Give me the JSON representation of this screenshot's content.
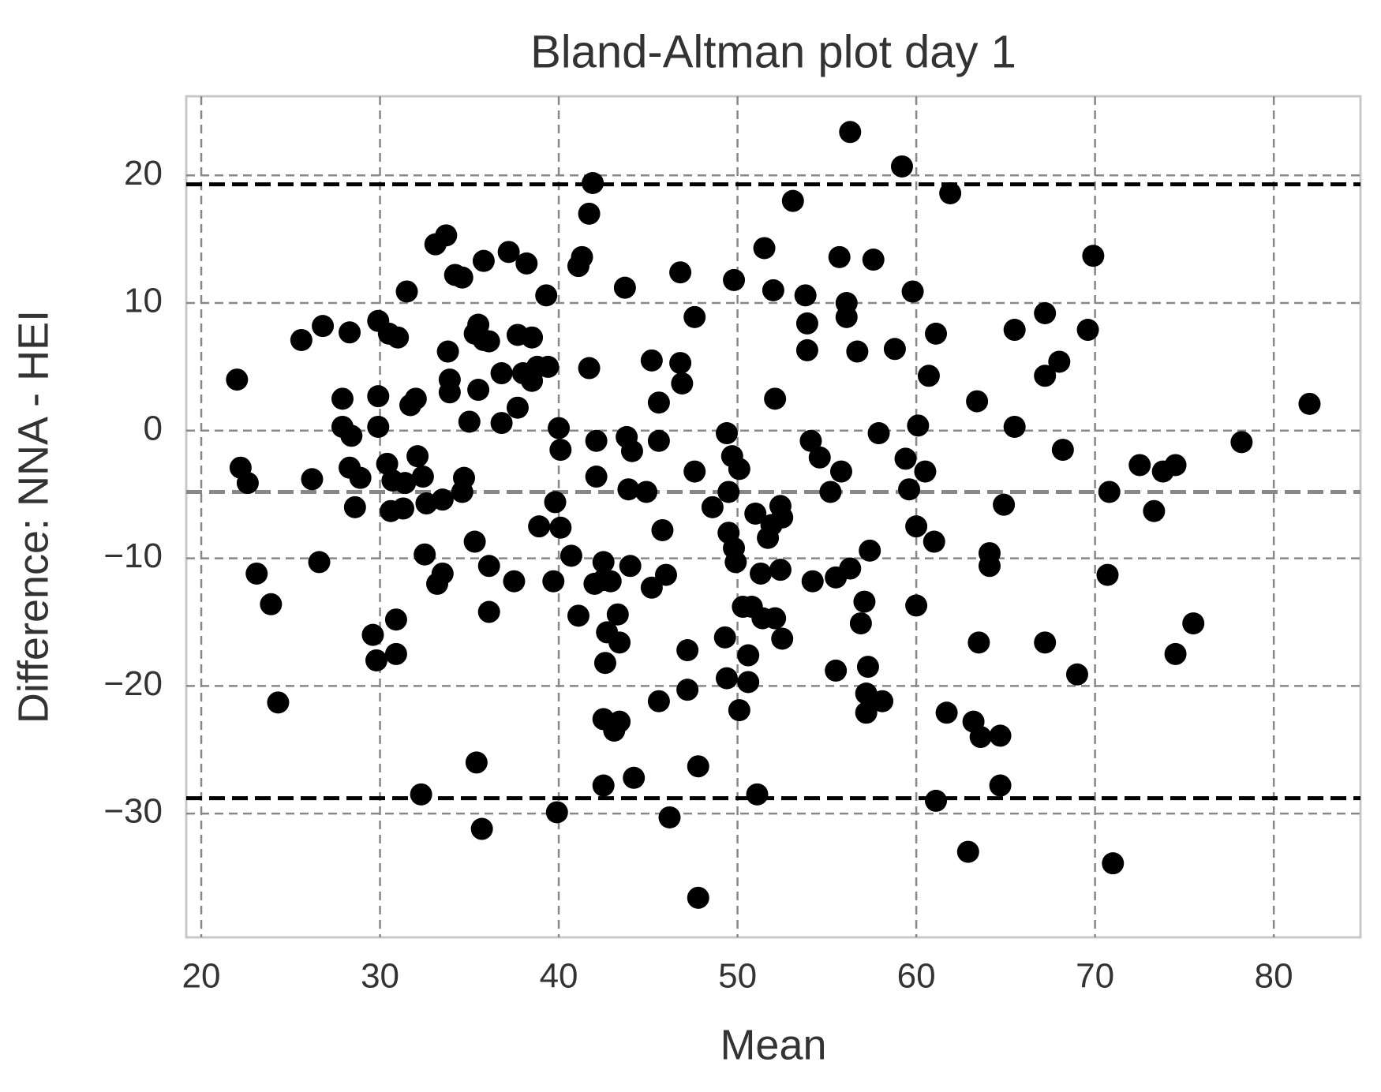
{
  "chart_data": {
    "type": "scatter",
    "title": "Bland-Altman plot day 1",
    "x_label": "Mean",
    "y_label": "Difference: NNA - HEI",
    "color": "#000000",
    "grid": true,
    "xlim": [
      19.16,
      84.85
    ],
    "ylim": [
      -39.7,
      26.2
    ],
    "xticks": [
      20,
      30,
      40,
      50,
      60,
      70,
      80
    ],
    "yticks": [
      {
        "value": -30,
        "label": "−30"
      },
      {
        "value": -20,
        "label": "−20"
      },
      {
        "value": -10,
        "label": "−10"
      },
      0,
      10,
      20
    ],
    "hlines": [
      {
        "value": 19.3,
        "color": "#000000"
      },
      {
        "value": -4.8,
        "color": "#888888"
      },
      {
        "value": -28.8,
        "color": "#000000"
      }
    ],
    "x": [
      22.0,
      22.2,
      22.6,
      23.1,
      23.9,
      24.3,
      25.6,
      26.2,
      26.6,
      26.8,
      28.3,
      27.9,
      27.9,
      28.4,
      28.3,
      28.6,
      28.9,
      29.9,
      29.9,
      29.9,
      30.4,
      30.6,
      30.7,
      30.5,
      31.0,
      29.6,
      29.8,
      30.9,
      30.9,
      31.5,
      31.7,
      32.0,
      31.4,
      31.3,
      32.1,
      32.4,
      32.6,
      32.5,
      32.3,
      33.1,
      33.7,
      33.2,
      33.5,
      33.5,
      33.8,
      33.9,
      33.9,
      34.2,
      34.6,
      34.7,
      34.6,
      35.0,
      35.3,
      35.5,
      35.3,
      35.5,
      35.8,
      36.1,
      35.8,
      35.4,
      35.7,
      36.1,
      36.1,
      36.8,
      36.8,
      37.2,
      37.5,
      37.7,
      37.7,
      38.0,
      38.2,
      38.5,
      38.5,
      38.8,
      38.9,
      39.3,
      39.4,
      39.7,
      39.8,
      40.0,
      40.1,
      40.1,
      39.9,
      40.7,
      41.1,
      41.1,
      41.3,
      41.7,
      41.9,
      41.7,
      42.1,
      42.1,
      42.0,
      42.5,
      42.5,
      42.7,
      42.6,
      42.5,
      42.5,
      42.9,
      43.1,
      43.4,
      43.3,
      43.4,
      43.7,
      43.8,
      44.1,
      43.9,
      44.0,
      44.2,
      44.9,
      45.2,
      45.2,
      45.6,
      45.6,
      45.8,
      45.6,
      46.0,
      46.2,
      46.8,
      46.9,
      46.8,
      47.2,
      47.2,
      47.6,
      47.6,
      47.8,
      47.8,
      48.6,
      49.3,
      49.4,
      49.4,
      49.5,
      49.5,
      49.7,
      49.8,
      49.9,
      49.8,
      50.1,
      50.3,
      50.6,
      50.6,
      50.1,
      50.8,
      51.0,
      51.1,
      51.3,
      51.4,
      51.5,
      51.7,
      51.9,
      52.0,
      52.1,
      52.1,
      52.4,
      52.5,
      52.4,
      52.5,
      53.1,
      53.8,
      53.9,
      53.9,
      54.1,
      54.6,
      54.2,
      55.2,
      55.5,
      55.5,
      55.7,
      55.8,
      56.1,
      56.1,
      56.3,
      56.3,
      56.7,
      56.9,
      57.1,
      57.2,
      57.3,
      57.2,
      57.4,
      57.6,
      57.9,
      58.1,
      58.8,
      59.2,
      59.4,
      59.6,
      59.8,
      60.0,
      60.1,
      60.0,
      60.5,
      60.7,
      61.0,
      61.1,
      61.1,
      61.7,
      61.9,
      62.9,
      63.2,
      63.4,
      63.5,
      63.6,
      64.1,
      64.1,
      64.7,
      64.7,
      64.9,
      65.5,
      65.5,
      67.2,
      67.2,
      67.2,
      68.0,
      68.2,
      69.0,
      69.6,
      69.9,
      70.8,
      70.7,
      71.0,
      72.5,
      73.3,
      73.8,
      74.5,
      74.5,
      75.5,
      78.2,
      82.0
    ],
    "values": [
      4.0,
      -2.9,
      -4.1,
      -11.2,
      -13.6,
      -21.3,
      7.1,
      -3.8,
      -10.3,
      8.2,
      7.7,
      2.5,
      0.3,
      -0.4,
      -2.9,
      -6.0,
      -3.7,
      8.6,
      2.7,
      0.3,
      -2.6,
      -6.3,
      -3.9,
      7.6,
      7.3,
      -16.0,
      -18.0,
      -14.8,
      -17.5,
      10.9,
      2.0,
      2.5,
      -4.1,
      -6.1,
      -2.0,
      -3.6,
      -5.7,
      -9.7,
      -28.5,
      14.6,
      15.3,
      -12.0,
      -11.2,
      -5.4,
      6.2,
      4.0,
      3.0,
      12.2,
      12.0,
      -3.7,
      -4.8,
      0.7,
      -8.7,
      8.3,
      7.6,
      3.2,
      7.1,
      7.0,
      13.3,
      -26.0,
      -31.2,
      -10.6,
      -14.2,
      0.6,
      4.5,
      14.0,
      -11.8,
      7.5,
      1.8,
      4.5,
      13.1,
      7.3,
      3.9,
      5.0,
      -7.5,
      10.6,
      5.0,
      -11.8,
      -5.6,
      0.2,
      -1.5,
      -7.6,
      -29.9,
      -9.8,
      -14.5,
      12.9,
      13.6,
      17.0,
      19.4,
      4.9,
      -0.8,
      -3.6,
      -12.0,
      -10.3,
      -11.7,
      -15.8,
      -18.2,
      -22.6,
      -27.8,
      -11.8,
      -23.5,
      -22.8,
      -14.4,
      -16.6,
      11.2,
      -0.5,
      -1.6,
      -4.6,
      -10.6,
      -27.2,
      -4.8,
      5.5,
      -12.3,
      2.2,
      -0.8,
      -7.8,
      -21.2,
      -11.3,
      -30.3,
      5.3,
      3.7,
      12.4,
      -17.2,
      -20.3,
      8.9,
      -3.2,
      -26.3,
      -36.6,
      -6.0,
      -16.2,
      -19.4,
      -0.2,
      -4.8,
      -8.0,
      -2.0,
      -9.2,
      -10.3,
      11.8,
      -3.0,
      -13.8,
      -17.6,
      -19.7,
      -21.9,
      -13.8,
      -6.5,
      -28.5,
      -11.2,
      -14.7,
      14.3,
      -8.4,
      -7.4,
      11.0,
      2.5,
      -14.7,
      -5.9,
      -6.8,
      -10.9,
      -16.3,
      18.0,
      10.6,
      8.4,
      6.3,
      -0.8,
      -2.1,
      -11.8,
      -4.8,
      -11.5,
      -18.8,
      13.6,
      -3.2,
      10.0,
      8.9,
      23.4,
      -10.8,
      6.2,
      -15.1,
      -13.4,
      -20.6,
      -18.5,
      -22.1,
      -9.4,
      13.4,
      -0.2,
      -21.2,
      6.4,
      20.7,
      -2.2,
      -4.6,
      10.9,
      -13.7,
      0.4,
      -7.5,
      -3.2,
      4.3,
      -8.7,
      7.6,
      -29.0,
      -22.1,
      18.6,
      -33.0,
      -22.8,
      2.3,
      -16.6,
      -24.0,
      -9.6,
      -10.6,
      -23.9,
      -27.8,
      -5.8,
      0.3,
      7.9,
      9.2,
      4.3,
      -16.6,
      5.4,
      -1.5,
      -19.1,
      7.9,
      13.7,
      -4.8,
      -11.3,
      -33.9,
      -2.7,
      -6.3,
      -3.2,
      -2.7,
      -17.5,
      -15.1,
      -0.9,
      2.1
    ]
  }
}
